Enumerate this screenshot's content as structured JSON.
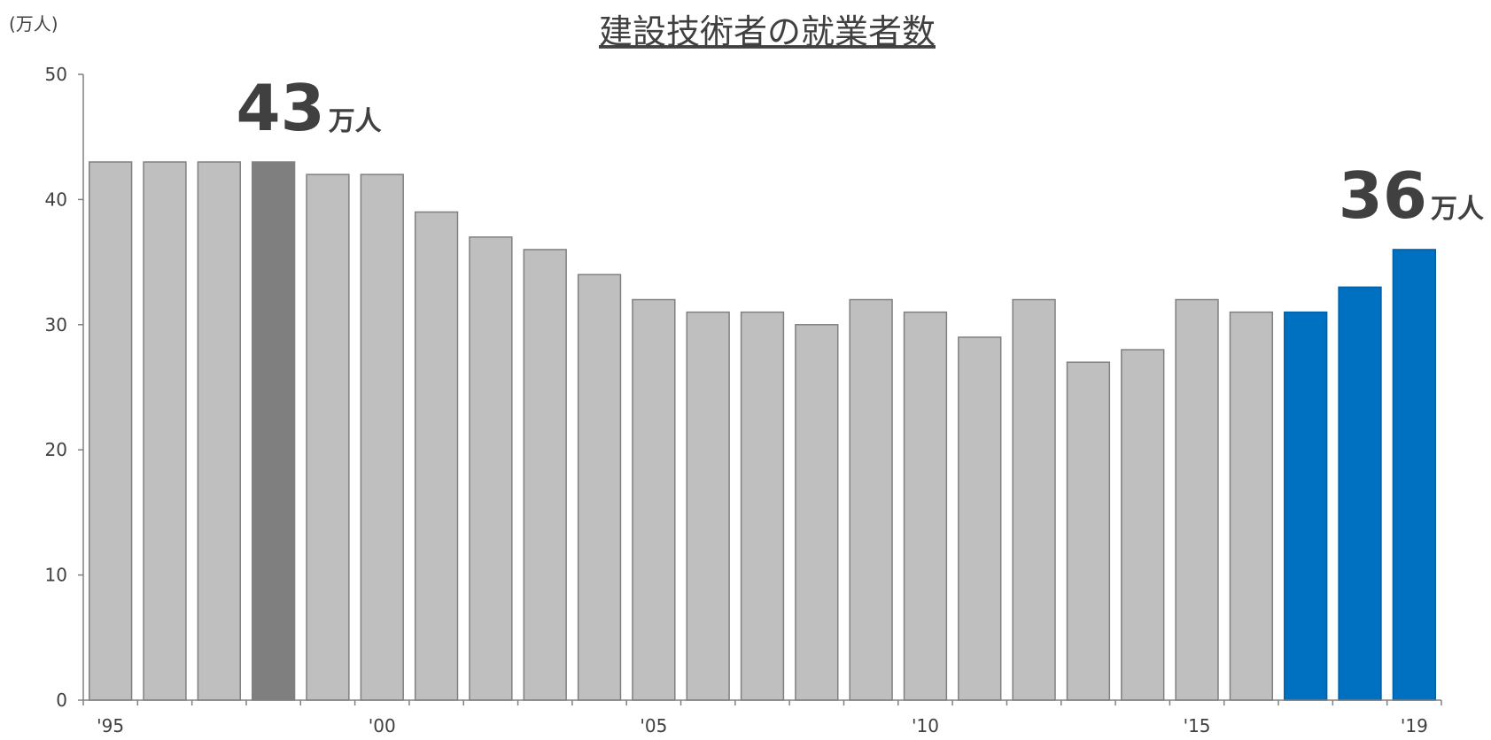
{
  "chart_data": {
    "type": "bar",
    "title": "建設技術者の就業者数",
    "y_unit_label": "(万人)",
    "ylim": [
      0,
      50
    ],
    "yticks": [
      0,
      10,
      20,
      30,
      40,
      50
    ],
    "categories": [
      "1995",
      "1996",
      "1997",
      "1998",
      "1999",
      "2000",
      "2001",
      "2002",
      "2003",
      "2004",
      "2005",
      "2006",
      "2007",
      "2008",
      "2009",
      "2010",
      "2011",
      "2012",
      "2013",
      "2014",
      "2015",
      "2016",
      "2017",
      "2018",
      "2019"
    ],
    "tick_labels": [
      {
        "index": 0,
        "label": "'95"
      },
      {
        "index": 5,
        "label": "'00"
      },
      {
        "index": 10,
        "label": "'05"
      },
      {
        "index": 15,
        "label": "'10"
      },
      {
        "index": 20,
        "label": "'15"
      },
      {
        "index": 24,
        "label": "'19"
      }
    ],
    "values": [
      43,
      43,
      43,
      43,
      42,
      42,
      39,
      37,
      36,
      34,
      32,
      31,
      31,
      30,
      32,
      31,
      29,
      32,
      27,
      28,
      32,
      31,
      31,
      33,
      36
    ],
    "colors": {
      "default": "#bfbfbf",
      "peak": "#7f7f7f",
      "recent": "#0070c0",
      "outline": "#808080",
      "axis": "#808080"
    },
    "highlight": {
      "peak_index": 3,
      "recent_indices": [
        22,
        23,
        24
      ]
    },
    "annotations": [
      {
        "bar_index": 3,
        "value": "43",
        "unit": "万人"
      },
      {
        "bar_index": 24,
        "value": "36",
        "unit": "万人"
      }
    ],
    "grid": false,
    "legend": "none"
  }
}
